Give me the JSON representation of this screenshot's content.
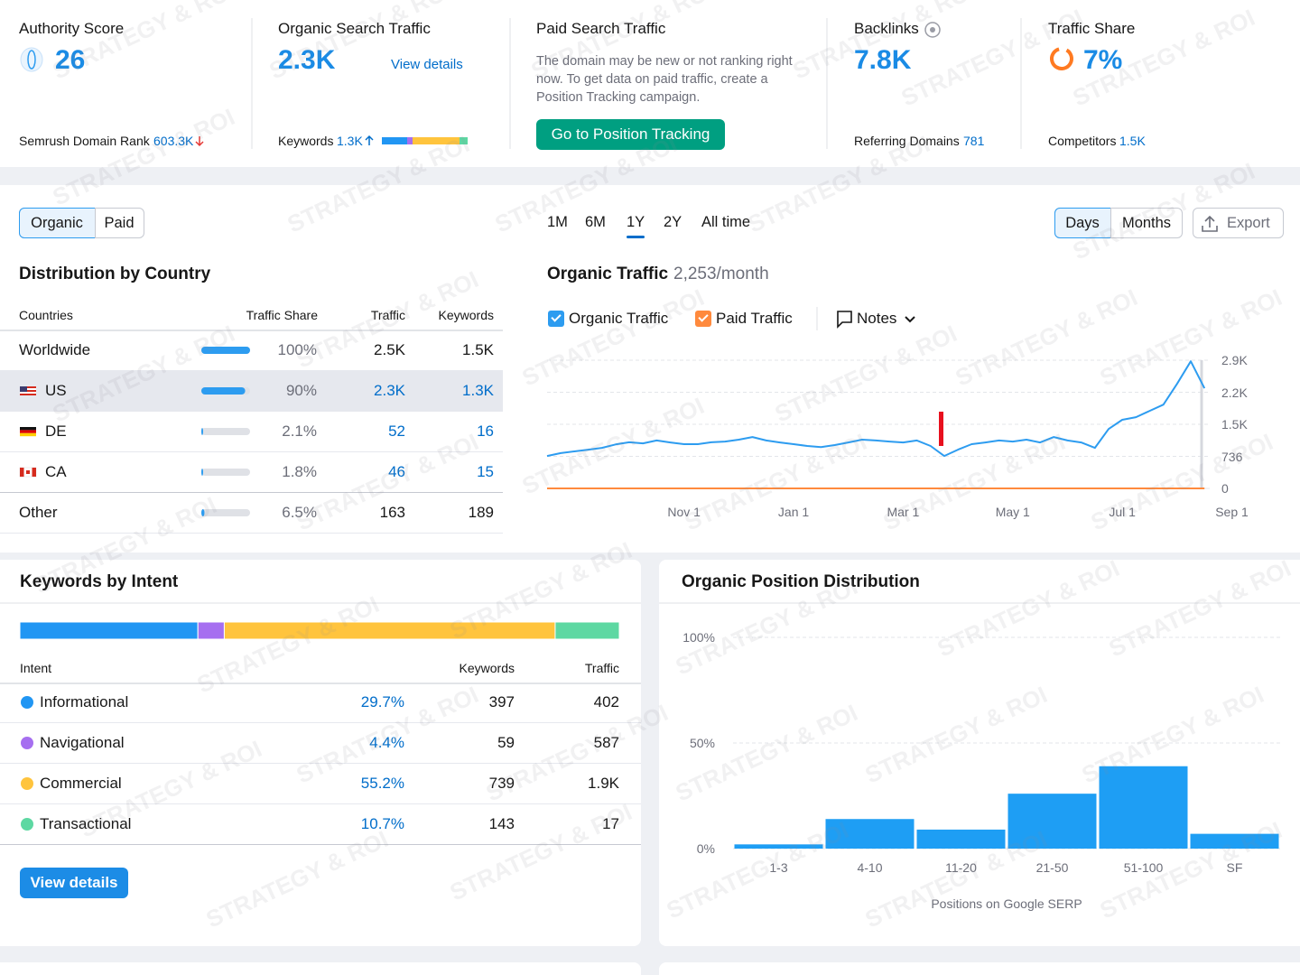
{
  "metrics": [
    {
      "label": "Authority Score",
      "value": 26,
      "footer_label": "Semrush Domain Rank",
      "footer_value": "603.3K"
    },
    {
      "label": "Organic Search Traffic",
      "value": "2.3K",
      "link": "View details",
      "footer_label": "Keywords",
      "footer_value": "1.3K"
    },
    {
      "label": "Paid Search Traffic",
      "text": "The domain may be new or not ranking right now. To get data on paid traffic, create a Position Tracking campaign.",
      "button": "Go to Position Tracking"
    },
    {
      "label": "Backlinks",
      "value": "7.8K",
      "footer_label": "Referring Domains",
      "footer_value": 781
    },
    {
      "label": "Traffic Share",
      "value": "7%",
      "footer_label": "Competitors",
      "footer_value": "1.5K"
    }
  ],
  "country": {
    "tabs": [
      "Organic",
      "Paid"
    ],
    "title": "Distribution by Country",
    "columns": [
      "Countries",
      "Traffic Share",
      "Traffic",
      "Keywords"
    ],
    "rows": [
      {
        "name": "Worldwide",
        "share": 100,
        "share_label": "100%",
        "traffic": "2.5K",
        "keywords": "1.5K"
      },
      {
        "name": "US",
        "share": 90,
        "share_label": "90%",
        "traffic": "2.3K",
        "keywords": "1.3K"
      },
      {
        "name": "DE",
        "share": 2.1,
        "share_label": "2.1%",
        "traffic": 52,
        "keywords": 16
      },
      {
        "name": "CA",
        "share": 1.8,
        "share_label": "1.8%",
        "traffic": 46,
        "keywords": 15
      },
      {
        "name": "Other",
        "share": 6.5,
        "share_label": "6.5%",
        "traffic": 163,
        "keywords": 189
      }
    ]
  },
  "traffic_controls": {
    "ranges": [
      "1M",
      "6M",
      "1Y",
      "2Y",
      "All time"
    ],
    "active_range": 2,
    "views": [
      "Days",
      "Months"
    ],
    "export": "Export",
    "notes": "Notes"
  },
  "intent": {
    "title": "Keywords by Intent",
    "columns": [
      "Intent",
      "Keywords",
      "Traffic"
    ],
    "rows": [
      {
        "name": "Informational",
        "color": "#2196f3",
        "share": 29.7,
        "share_label": "29.7%",
        "keywords": 397,
        "traffic": 402
      },
      {
        "name": "Navigational",
        "color": "#a66ff0",
        "share": 4.4,
        "share_label": "4.4%",
        "keywords": 59,
        "traffic": 587
      },
      {
        "name": "Commercial",
        "color": "#ffc43d",
        "share": 55.2,
        "share_label": "55.2%",
        "keywords": 739,
        "traffic": "1.9K"
      },
      {
        "name": "Transactional",
        "color": "#5dd8a2",
        "share": 10.7,
        "share_label": "10.7%",
        "keywords": 143,
        "traffic": 17
      }
    ],
    "button": "View details"
  },
  "watermark": "STRATEGY & ROI",
  "chart_data": [
    {
      "type": "line",
      "title": "Organic Traffic",
      "subtitle": "2,253/month",
      "categories": [
        null,
        null,
        null,
        null,
        null,
        null,
        null,
        null,
        null,
        null,
        "Nov 1",
        null,
        null,
        null,
        null,
        null,
        null,
        null,
        "Jan 1",
        null,
        null,
        null,
        null,
        null,
        null,
        null,
        "Mar 1",
        null,
        null,
        null,
        null,
        null,
        null,
        null,
        "May 1",
        null,
        null,
        null,
        null,
        null,
        null,
        null,
        "Jul 1",
        null,
        null,
        null,
        null,
        null,
        null,
        null,
        "Sep 1"
      ],
      "series": [
        {
          "name": "Organic Traffic",
          "color": "#2d9cf0",
          "values": [
            745,
            810,
            850,
            890,
            930,
            1010,
            1060,
            1035,
            1100,
            1055,
            1015,
            1015,
            1060,
            1075,
            1120,
            1180,
            1100,
            1055,
            1015,
            975,
            950,
            995,
            1055,
            1120,
            1100,
            1075,
            1055,
            1100,
            975,
            745,
            890,
            1015,
            1055,
            1100,
            1075,
            1120,
            1055,
            1180,
            1100,
            1055,
            930,
            1365,
            1575,
            1635,
            1780,
            1925,
            2400,
            2920,
            2300,
            null,
            null
          ]
        },
        {
          "name": "Paid Traffic",
          "color": "#ff8a3d",
          "values": [
            0,
            0,
            0,
            0,
            0,
            0,
            0,
            0,
            0,
            0,
            0,
            0,
            0,
            0,
            0,
            0,
            0,
            0,
            0,
            0,
            0,
            0,
            0,
            0,
            0,
            0,
            0,
            0,
            0,
            0,
            0,
            0,
            0,
            0,
            0,
            0,
            0,
            0,
            0,
            0,
            0,
            0,
            0,
            0,
            0,
            0,
            0,
            0,
            0,
            null,
            null
          ]
        }
      ],
      "ylim": [
        0,
        2944
      ],
      "yticks": [
        0,
        736,
        {
          "value": 1472,
          "label": "1.5K"
        },
        {
          "value": 2208,
          "label": "2.2K"
        },
        {
          "value": 2944,
          "label": "2.9K"
        }
      ],
      "grid": true
    },
    {
      "type": "bar",
      "title": "Organic Position Distribution",
      "categories": [
        "1-3",
        "4-10",
        "11-20",
        "21-50",
        "51-100",
        "SF"
      ],
      "values": [
        2,
        14,
        9,
        26,
        39,
        7
      ],
      "color": "#1e9ef4",
      "ylim": [
        0,
        100
      ],
      "yticks": [
        {
          "value": 0,
          "label": "0%"
        },
        {
          "value": 50,
          "label": "50%"
        },
        {
          "value": 100,
          "label": "100%"
        }
      ],
      "xlabel": "Positions on Google SERP",
      "grid": true
    }
  ]
}
